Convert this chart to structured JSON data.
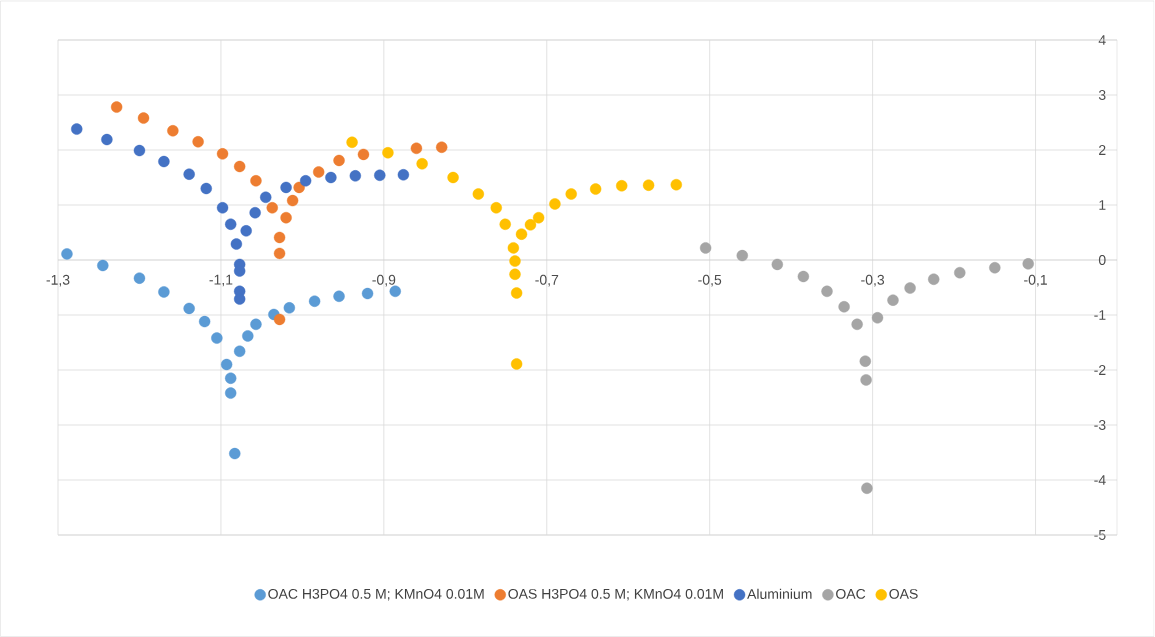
{
  "chart_data": {
    "type": "scatter",
    "xlim": [
      -1.3,
      0
    ],
    "ylim": [
      -5,
      4
    ],
    "xticks": [
      {
        "value": -1.3,
        "label": "-1,3"
      },
      {
        "value": -1.1,
        "label": "-1,1"
      },
      {
        "value": -0.9,
        "label": "-0,9"
      },
      {
        "value": -0.7,
        "label": "-0,7"
      },
      {
        "value": -0.5,
        "label": "-0,5"
      },
      {
        "value": -0.3,
        "label": "-0,3"
      },
      {
        "value": -0.1,
        "label": "-0,1"
      }
    ],
    "yticks": [
      -5,
      -4,
      -3,
      -2,
      -1,
      0,
      1,
      2,
      3,
      4
    ],
    "grid": true,
    "legend": "bottom",
    "marker": "circle",
    "series": [
      {
        "name": "OAC H3PO4 0.5 M; KMnO4 0.01M",
        "color": "#5b9bd5",
        "x": [
          -1.289,
          -1.245,
          -1.2,
          -1.17,
          -1.139,
          -1.12,
          -1.105,
          -1.093,
          -1.088,
          -1.088,
          -1.083,
          -1.077,
          -1.067,
          -1.057,
          -1.035,
          -1.016,
          -0.985,
          -0.955,
          -0.92,
          -0.886
        ],
        "values": [
          0.11,
          -0.1,
          -0.33,
          -0.58,
          -0.88,
          -1.12,
          -1.42,
          -1.9,
          -2.15,
          -2.42,
          -3.52,
          -1.66,
          -1.38,
          -1.17,
          -0.99,
          -0.87,
          -0.75,
          -0.66,
          -0.61,
          -0.57
        ]
      },
      {
        "name": "OAS H3PO4 0.5 M; KMnO4 0.01M",
        "color": "#ed7d31",
        "x": [
          -1.228,
          -1.195,
          -1.159,
          -1.128,
          -1.098,
          -1.077,
          -1.057,
          -1.037,
          -1.028,
          -1.028,
          -1.028,
          -1.02,
          -1.012,
          -1.004,
          -0.98,
          -0.955,
          -0.925,
          -0.894,
          -0.86,
          -0.829
        ],
        "values": [
          2.78,
          2.58,
          2.35,
          2.15,
          1.93,
          1.7,
          1.44,
          0.95,
          0.41,
          0.12,
          -1.08,
          0.77,
          1.08,
          1.32,
          1.6,
          1.81,
          1.92,
          null,
          2.03,
          2.05
        ]
      },
      {
        "name": "Aluminium",
        "color": "#4472c4",
        "x": [
          -1.277,
          -1.24,
          -1.2,
          -1.17,
          -1.139,
          -1.118,
          -1.098,
          -1.088,
          -1.081,
          -1.077,
          -1.077,
          -1.077,
          -1.077,
          -1.069,
          -1.058,
          -1.045,
          -1.02,
          -0.996,
          -0.965,
          -0.935,
          -0.905,
          -0.876
        ],
        "values": [
          2.38,
          2.19,
          1.99,
          1.79,
          1.56,
          1.3,
          0.95,
          0.65,
          0.29,
          -0.08,
          -0.2,
          -0.57,
          -0.71,
          0.53,
          0.86,
          1.14,
          1.32,
          1.44,
          1.5,
          1.53,
          1.54,
          1.55
        ]
      },
      {
        "name": "OAC",
        "color": "#a5a5a5",
        "x": [
          -0.505,
          -0.46,
          -0.417,
          -0.385,
          -0.356,
          -0.335,
          -0.319,
          -0.309,
          -0.308,
          -0.307,
          -0.294,
          -0.275,
          -0.254,
          -0.225,
          -0.193,
          -0.15,
          -0.109
        ],
        "values": [
          0.22,
          0.08,
          -0.08,
          -0.3,
          -0.57,
          -0.85,
          -1.17,
          -1.84,
          -2.18,
          -4.15,
          -1.05,
          -0.73,
          -0.51,
          -0.35,
          -0.23,
          -0.14,
          -0.07
        ]
      },
      {
        "name": "OAS",
        "color": "#ffc000",
        "x": [
          -0.939,
          -0.895,
          -0.853,
          -0.815,
          -0.784,
          -0.762,
          -0.751,
          -0.741,
          -0.739,
          -0.739,
          -0.737,
          -0.737,
          -0.731,
          -0.72,
          -0.71,
          -0.69,
          -0.67,
          -0.64,
          -0.608,
          -0.575,
          -0.541
        ],
        "values": [
          2.14,
          1.95,
          1.75,
          1.5,
          1.2,
          0.95,
          0.65,
          0.22,
          -0.02,
          -0.26,
          -0.6,
          -1.89,
          0.47,
          0.64,
          0.77,
          1.02,
          1.2,
          1.29,
          1.35,
          1.36,
          1.37
        ]
      }
    ]
  }
}
